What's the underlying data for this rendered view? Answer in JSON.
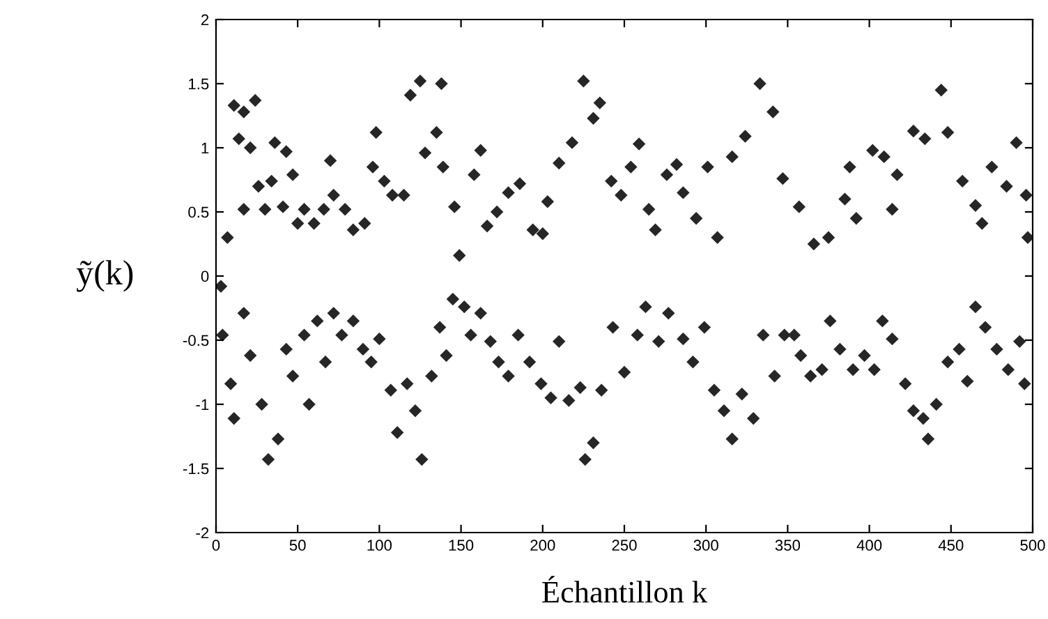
{
  "chart_data": {
    "type": "scatter",
    "xlabel": "Échantillon k",
    "ylabel": "ỹ(k)",
    "marker": "diamond",
    "grid": false,
    "legend": false,
    "xlim": [
      0,
      500
    ],
    "ylim": [
      -2,
      2
    ],
    "xticks": [
      0,
      50,
      100,
      150,
      200,
      250,
      300,
      350,
      400,
      450,
      500
    ],
    "yticks": [
      -2,
      -1.5,
      -1,
      -0.5,
      0,
      0.5,
      1,
      1.5,
      2
    ],
    "series": [
      {
        "color": "#262626",
        "x": [
          7,
          11,
          17,
          24,
          14,
          21,
          26,
          17,
          34,
          36,
          43,
          41,
          30,
          47,
          50,
          54,
          60,
          66,
          70,
          72,
          79,
          84,
          91,
          96,
          98,
          103,
          108,
          115,
          119,
          125,
          128,
          135,
          139,
          138,
          146,
          149,
          158,
          162,
          166,
          172,
          179,
          186,
          194,
          200,
          203,
          210,
          218,
          225,
          231,
          235,
          242,
          248,
          254,
          259,
          265,
          269,
          276,
          282,
          286,
          294,
          301,
          307,
          316,
          324,
          333,
          341,
          347,
          357,
          366,
          375,
          385,
          388,
          392,
          402,
          409,
          414,
          417,
          427,
          434,
          444,
          448,
          457,
          465,
          469,
          475,
          484,
          490,
          497,
          496,
          3,
          4,
          9,
          11,
          17,
          21,
          28,
          32,
          38,
          43,
          47,
          54,
          57,
          62,
          67,
          72,
          77,
          84,
          90,
          95,
          100,
          107,
          111,
          117,
          122,
          126,
          132,
          137,
          141,
          145,
          152,
          156,
          162,
          168,
          173,
          179,
          185,
          192,
          199,
          205,
          210,
          216,
          223,
          226,
          231,
          236,
          243,
          250,
          258,
          263,
          271,
          277,
          286,
          292,
          299,
          305,
          311,
          316,
          322,
          329,
          335,
          342,
          348,
          354,
          358,
          364,
          371,
          376,
          382,
          390,
          397,
          403,
          408,
          414,
          422,
          427,
          433,
          436,
          441,
          448,
          455,
          460,
          465,
          471,
          478,
          485,
          492,
          495
        ],
        "values": [
          0.3,
          1.33,
          1.28,
          1.37,
          1.07,
          1.0,
          0.7,
          0.52,
          0.74,
          1.04,
          0.97,
          0.54,
          0.52,
          0.79,
          0.41,
          0.52,
          0.41,
          0.52,
          0.9,
          0.63,
          0.52,
          0.36,
          0.41,
          0.85,
          1.12,
          0.74,
          0.63,
          0.63,
          1.41,
          1.52,
          0.96,
          1.12,
          0.85,
          1.5,
          0.54,
          0.16,
          0.79,
          0.98,
          0.39,
          0.5,
          0.65,
          0.72,
          0.36,
          0.33,
          0.58,
          0.88,
          1.04,
          1.52,
          1.23,
          1.35,
          0.74,
          0.63,
          0.85,
          1.03,
          0.52,
          0.36,
          0.79,
          0.87,
          0.65,
          0.45,
          0.85,
          0.3,
          0.93,
          1.09,
          1.5,
          1.28,
          0.76,
          0.54,
          0.25,
          0.3,
          0.6,
          0.85,
          0.45,
          0.98,
          0.93,
          0.52,
          0.79,
          1.13,
          1.07,
          1.45,
          1.12,
          0.74,
          0.55,
          0.41,
          0.85,
          0.7,
          1.04,
          0.3,
          0.63,
          -0.08,
          -0.46,
          -0.84,
          -1.11,
          -0.29,
          -0.62,
          -1.0,
          -1.43,
          -1.27,
          -0.57,
          -0.78,
          -0.46,
          -1.0,
          -0.35,
          -0.67,
          -0.29,
          -0.46,
          -0.35,
          -0.57,
          -0.67,
          -0.49,
          -0.89,
          -1.22,
          -0.84,
          -1.05,
          -1.43,
          -0.78,
          -0.4,
          -0.62,
          -0.18,
          -0.24,
          -0.46,
          -0.29,
          -0.51,
          -0.67,
          -0.78,
          -0.46,
          -0.67,
          -0.84,
          -0.95,
          -0.51,
          -0.97,
          -0.87,
          -1.43,
          -1.3,
          -0.89,
          -0.4,
          -0.75,
          -0.46,
          -0.24,
          -0.51,
          -0.29,
          -0.49,
          -0.67,
          -0.4,
          -0.89,
          -1.05,
          -1.27,
          -0.92,
          -1.11,
          -0.46,
          -0.78,
          -0.46,
          -0.46,
          -0.62,
          -0.78,
          -0.73,
          -0.35,
          -0.57,
          -0.73,
          -0.62,
          -0.73,
          -0.35,
          -0.49,
          -0.84,
          -1.05,
          -1.11,
          -1.27,
          -1.0,
          -0.67,
          -0.57,
          -0.82,
          -0.24,
          -0.4,
          -0.57,
          -0.73,
          -0.51,
          -0.84
        ]
      }
    ]
  }
}
